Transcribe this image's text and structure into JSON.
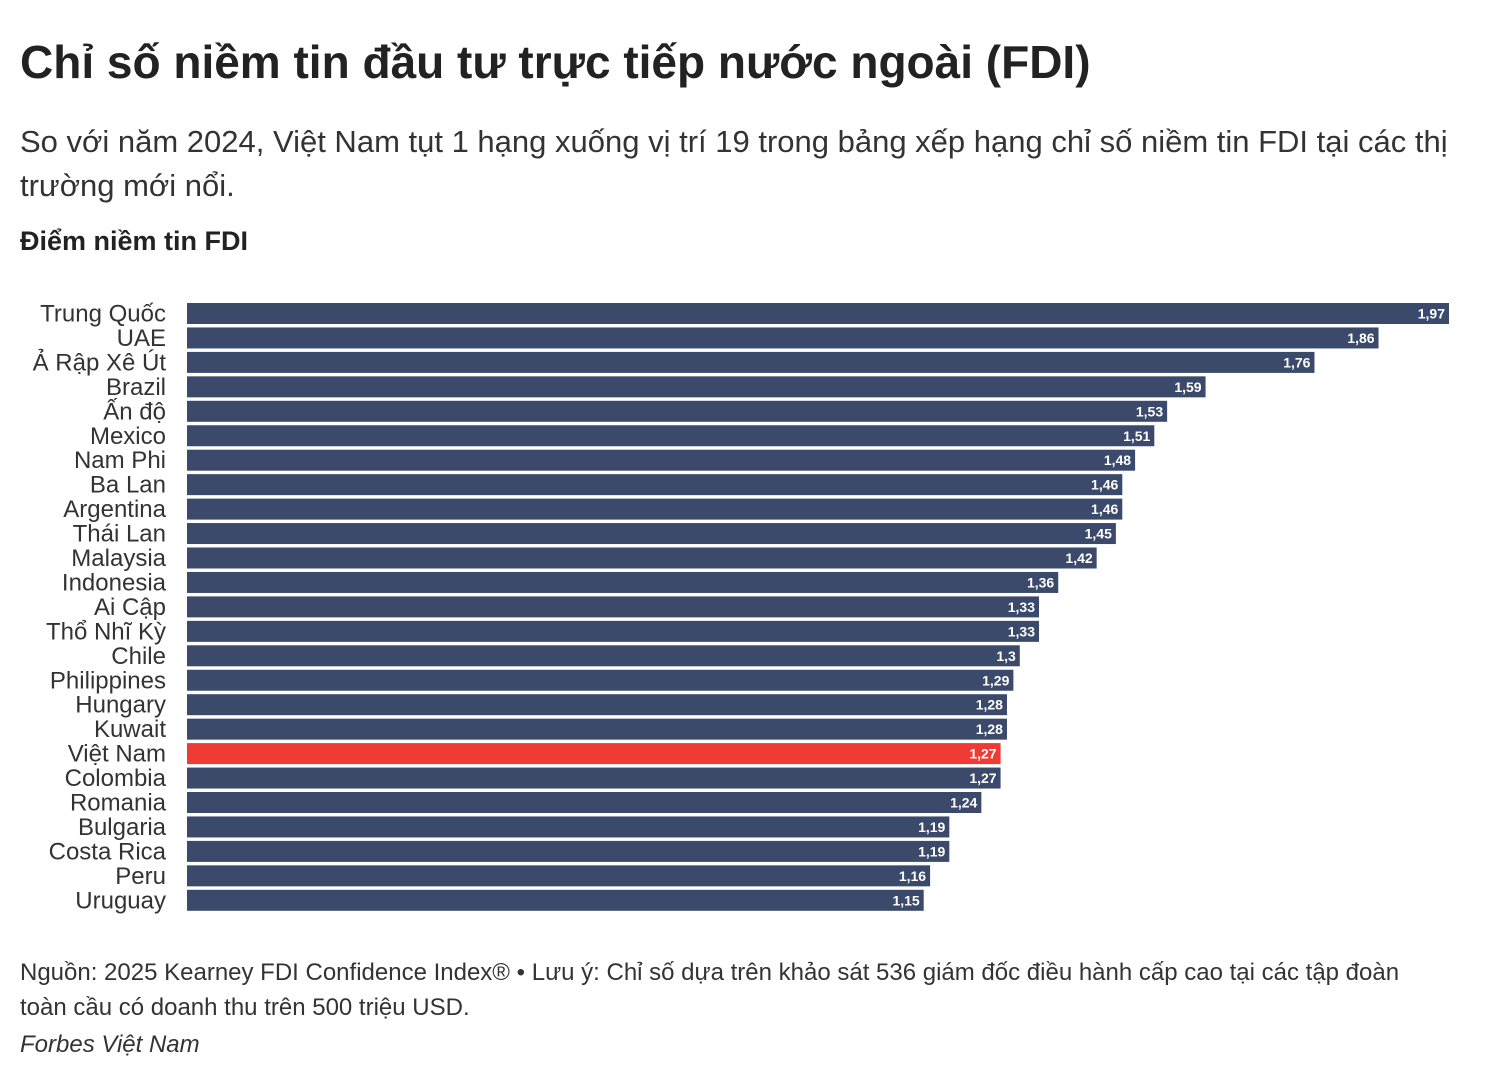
{
  "header": {
    "title": "Chỉ số niềm tin đầu tư trực tiếp nước ngoài (FDI)",
    "subtitle": "So với năm 2024, Việt Nam tụt 1 hạng xuống vị trí 19 trong bảng xếp hạng chỉ số niềm tin FDI tại các thị trường mới nổi.",
    "chart_heading": "Điểm niềm tin FDI"
  },
  "footer": {
    "source_note": "Nguồn: 2025 Kearney FDI Confidence Index® • Lưu ý: Chỉ số dựa trên khảo sát 536 giám đốc điều hành cấp cao tại các tập đoàn toàn cầu có doanh thu trên 500 triệu USD.",
    "credit": "Forbes Việt Nam"
  },
  "colors": {
    "bar": "#3b4a6b",
    "highlight": "#f03a34",
    "value_text": "#ffffff",
    "label_text": "#333333"
  },
  "chart_data": {
    "type": "bar",
    "orientation": "horizontal",
    "categories": [
      "Trung Quốc",
      "UAE",
      "Ả Rập Xê Út",
      "Brazil",
      "Ấn độ",
      "Mexico",
      "Nam Phi",
      "Ba Lan",
      "Argentina",
      "Thái Lan",
      "Malaysia",
      "Indonesia",
      "Ai Cập",
      "Thổ Nhĩ Kỳ",
      "Chile",
      "Philippines",
      "Hungary",
      "Kuwait",
      "Việt Nam",
      "Colombia",
      "Romania",
      "Bulgaria",
      "Costa Rica",
      "Peru",
      "Uruguay"
    ],
    "values": [
      1.97,
      1.86,
      1.76,
      1.59,
      1.53,
      1.51,
      1.48,
      1.46,
      1.46,
      1.45,
      1.42,
      1.36,
      1.33,
      1.33,
      1.3,
      1.29,
      1.28,
      1.28,
      1.27,
      1.27,
      1.24,
      1.19,
      1.19,
      1.16,
      1.15
    ],
    "value_labels": [
      "1,97",
      "1,86",
      "1,76",
      "1,59",
      "1,53",
      "1,51",
      "1,48",
      "1,46",
      "1,46",
      "1,45",
      "1,42",
      "1,36",
      "1,33",
      "1,33",
      "1,3",
      "1,29",
      "1,28",
      "1,28",
      "1,27",
      "1,27",
      "1,24",
      "1,19",
      "1,19",
      "1,16",
      "1,15"
    ],
    "highlight": "Việt Nam",
    "xlim": [
      0,
      1.97
    ],
    "grid": false,
    "xlabel": "",
    "ylabel": ""
  }
}
